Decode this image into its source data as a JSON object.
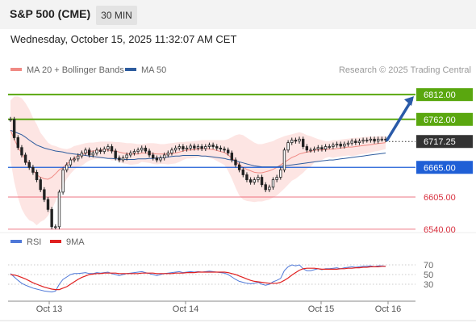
{
  "header": {
    "title": "S&P 500 (CME)",
    "interval": "30 MIN",
    "datetime": "Wednesday, October 15, 2025 11:32:07 AM CET",
    "credit": "Research © 2025 Trading Central"
  },
  "colors": {
    "ma20_band": "#f08a84",
    "ma50": "#2e5c9e",
    "resistance": "#5aa70f",
    "support_blue": "#1f5fd6",
    "support_red": "#e8485a",
    "arrow": "#2a5aa8",
    "rsi": "#4f78d8",
    "rsi_ma": "#e02020"
  },
  "chart_data": [
    {
      "type": "candlestick",
      "legend": [
        {
          "name": "MA 20 + Bollinger Bands",
          "color": "#f08a84"
        },
        {
          "name": "MA 50",
          "color": "#2e5c9e"
        }
      ],
      "x_ticks": [
        "Oct 13",
        "Oct 14",
        "Oct 15",
        "Oct 16"
      ],
      "ylim": [
        6530,
        6840
      ],
      "current_price": 6717.25,
      "levels": [
        {
          "label": "6812.00",
          "value": 6812,
          "kind": "resistance"
        },
        {
          "label": "6762.00",
          "value": 6762,
          "kind": "resistance"
        },
        {
          "label": "6717.25",
          "value": 6717.25,
          "kind": "last"
        },
        {
          "label": "6665.00",
          "value": 6665,
          "kind": "pivot"
        },
        {
          "label": "6605.00",
          "value": 6605,
          "kind": "support"
        },
        {
          "label": "6540.00",
          "value": 6540,
          "kind": "support"
        }
      ],
      "close": [
        6762,
        6725,
        6705,
        6690,
        6675,
        6665,
        6655,
        6640,
        6620,
        6600,
        6580,
        6545,
        6545,
        6615,
        6660,
        6670,
        6680,
        6682,
        6688,
        6694,
        6700,
        6690,
        6694,
        6700,
        6697,
        6702,
        6707,
        6698,
        6684,
        6680,
        6684,
        6690,
        6694,
        6697,
        6700,
        6704,
        6698,
        6690,
        6684,
        6680,
        6684,
        6690,
        6694,
        6700,
        6704,
        6707,
        6702,
        6704,
        6708,
        6704,
        6707,
        6703,
        6707,
        6710,
        6707,
        6704,
        6702,
        6700,
        6694,
        6680,
        6670,
        6660,
        6650,
        6640,
        6635,
        6640,
        6645,
        6630,
        6620,
        6625,
        6640,
        6645,
        6660,
        6700,
        6715,
        6720,
        6718,
        6722,
        6707,
        6700,
        6700,
        6702,
        6705,
        6702,
        6707,
        6707,
        6710,
        6712,
        6708,
        6712,
        6714,
        6718,
        6715,
        6718,
        6720,
        6720,
        6722,
        6718,
        6722,
        6722,
        6721
      ],
      "ma20": [
        6740,
        6722,
        6706,
        6693,
        6681,
        6670,
        6660,
        6650,
        6645,
        6642,
        6641,
        6645,
        6652,
        6660,
        6665,
        6672,
        6678,
        6684,
        6688,
        6690,
        6694,
        6697,
        6698,
        6699,
        6700,
        6700,
        6700,
        6698,
        6698,
        6696,
        6694,
        6693,
        6692,
        6692,
        6692,
        6694,
        6694,
        6694,
        6693,
        6692,
        6692,
        6692,
        6692,
        6693,
        6694,
        6696,
        6698,
        6700,
        6700,
        6701,
        6702,
        6703,
        6703,
        6702,
        6701,
        6699,
        6697,
        6695,
        6690,
        6684,
        6677,
        6670,
        6665,
        6661,
        6658,
        6655,
        6654,
        6654,
        6656,
        6658,
        6661,
        6665,
        6670,
        6675,
        6680,
        6685,
        6688,
        6692,
        6694,
        6696,
        6697,
        6700,
        6700,
        6700,
        6701,
        6702,
        6702,
        6703,
        6704,
        6705,
        6706,
        6706,
        6707,
        6708,
        6709,
        6710,
        6711,
        6712,
        6713,
        6714,
        6715
      ],
      "bb_upper": [
        6800,
        6808,
        6808,
        6805,
        6795,
        6782,
        6765,
        6752,
        6735,
        6725,
        6715,
        6710,
        6708,
        6705,
        6703,
        6702,
        6704,
        6708,
        6710,
        6712,
        6714,
        6715,
        6715,
        6716,
        6717,
        6717,
        6717,
        6717,
        6716,
        6716,
        6715,
        6714,
        6714,
        6713,
        6712,
        6712,
        6713,
        6714,
        6714,
        6713,
        6712,
        6712,
        6713,
        6714,
        6715,
        6716,
        6716,
        6717,
        6717,
        6718,
        6719,
        6720,
        6720,
        6720,
        6720,
        6720,
        6720,
        6720,
        6722,
        6726,
        6730,
        6732,
        6730,
        6725,
        6720,
        6715,
        6712,
        6712,
        6714,
        6716,
        6718,
        6722,
        6725,
        6728,
        6730,
        6732,
        6734,
        6736,
        6734,
        6730,
        6728,
        6725,
        6722,
        6720,
        6718,
        6718,
        6720,
        6720,
        6721,
        6722,
        6723,
        6724,
        6725,
        6725,
        6726,
        6727,
        6727,
        6727,
        6728,
        6728,
        6728
      ],
      "bb_lower": [
        6680,
        6636,
        6604,
        6581,
        6567,
        6558,
        6555,
        6548,
        6555,
        6559,
        6567,
        6580,
        6596,
        6615,
        6627,
        6642,
        6652,
        6660,
        6666,
        6668,
        6674,
        6679,
        6681,
        6682,
        6683,
        6683,
        6683,
        6679,
        6680,
        6676,
        6673,
        6672,
        6670,
        6671,
        6672,
        6676,
        6675,
        6674,
        6672,
        6671,
        6672,
        6672,
        6671,
        6672,
        6673,
        6676,
        6680,
        6683,
        6683,
        6684,
        6685,
        6686,
        6686,
        6684,
        6682,
        6678,
        6674,
        6670,
        6658,
        6642,
        6624,
        6608,
        6600,
        6597,
        6596,
        6595,
        6596,
        6596,
        6598,
        6600,
        6604,
        6608,
        6615,
        6622,
        6630,
        6638,
        6642,
        6648,
        6654,
        6662,
        6666,
        6675,
        6678,
        6680,
        6684,
        6686,
        6684,
        6686,
        6687,
        6688,
        6689,
        6688,
        6689,
        6691,
        6692,
        6693,
        6695,
        6697,
        6698,
        6700,
        6702
      ],
      "ma50": [
        6740,
        6737,
        6734,
        6731,
        6726,
        6720,
        6715,
        6710,
        6707,
        6704,
        6702,
        6700,
        6698,
        6697,
        6696,
        6694,
        6693,
        6692,
        6691,
        6690,
        6689,
        6688,
        6687,
        6686,
        6685,
        6684,
        6683,
        6683,
        6682,
        6682,
        6681,
        6681,
        6681,
        6681,
        6682,
        6682,
        6682,
        6683,
        6683,
        6684,
        6684,
        6685,
        6686,
        6687,
        6688,
        6688,
        6689,
        6689,
        6689,
        6689,
        6689,
        6688,
        6688,
        6687,
        6686,
        6685,
        6684,
        6683,
        6681,
        6680,
        6678,
        6676,
        6674,
        6672,
        6670,
        6668,
        6667,
        6666,
        6666,
        6666,
        6666,
        6666,
        6667,
        6668,
        6669,
        6670,
        6671,
        6672,
        6673,
        6674,
        6675,
        6676,
        6677,
        6678,
        6679,
        6680,
        6680,
        6681,
        6682,
        6683,
        6684,
        6685,
        6686,
        6687,
        6688,
        6689,
        6690,
        6691,
        6692,
        6693,
        6694
      ]
    },
    {
      "type": "line",
      "legend": [
        {
          "name": "RSI",
          "color": "#4f78d8"
        },
        {
          "name": "9MA",
          "color": "#e02020"
        }
      ],
      "y_ticks": [
        "70",
        "50",
        "30"
      ],
      "ylim": [
        0,
        100
      ],
      "series": [
        {
          "name": "RSI",
          "values": [
            52,
            45,
            38,
            32,
            28,
            25,
            22,
            20,
            18,
            16,
            15,
            14,
            16,
            30,
            40,
            45,
            50,
            52,
            52,
            53,
            54,
            52,
            52,
            54,
            53,
            54,
            55,
            52,
            50,
            48,
            50,
            52,
            53,
            54,
            55,
            56,
            54,
            52,
            50,
            48,
            50,
            52,
            53,
            54,
            55,
            56,
            54,
            55,
            56,
            55,
            56,
            55,
            56,
            57,
            56,
            55,
            54,
            53,
            50,
            45,
            40,
            36,
            34,
            32,
            31,
            32,
            34,
            30,
            28,
            30,
            35,
            38,
            42,
            58,
            66,
            70,
            68,
            70,
            62,
            58,
            58,
            60,
            62,
            60,
            62,
            62,
            63,
            64,
            62,
            64,
            65,
            66,
            65,
            66,
            67,
            67,
            68,
            66,
            68,
            68,
            67
          ]
        },
        {
          "name": "9MA",
          "values": [
            50,
            49,
            47,
            44,
            41,
            37,
            33,
            30,
            27,
            24,
            22,
            20,
            19,
            19,
            22,
            25,
            30,
            35,
            40,
            44,
            47,
            50,
            51,
            52,
            52,
            53,
            53,
            53,
            53,
            52,
            52,
            52,
            52,
            52,
            52,
            53,
            53,
            53,
            53,
            52,
            52,
            52,
            52,
            52,
            53,
            53,
            53,
            54,
            54,
            54,
            55,
            55,
            55,
            55,
            55,
            55,
            55,
            55,
            54,
            52,
            50,
            47,
            44,
            41,
            38,
            36,
            35,
            34,
            33,
            32,
            32,
            32,
            34,
            38,
            43,
            49,
            54,
            59,
            62,
            63,
            63,
            63,
            62,
            61,
            61,
            61,
            61,
            61,
            62,
            62,
            63,
            63,
            64,
            64,
            65,
            65,
            66,
            66,
            66,
            67,
            67
          ]
        }
      ]
    }
  ]
}
